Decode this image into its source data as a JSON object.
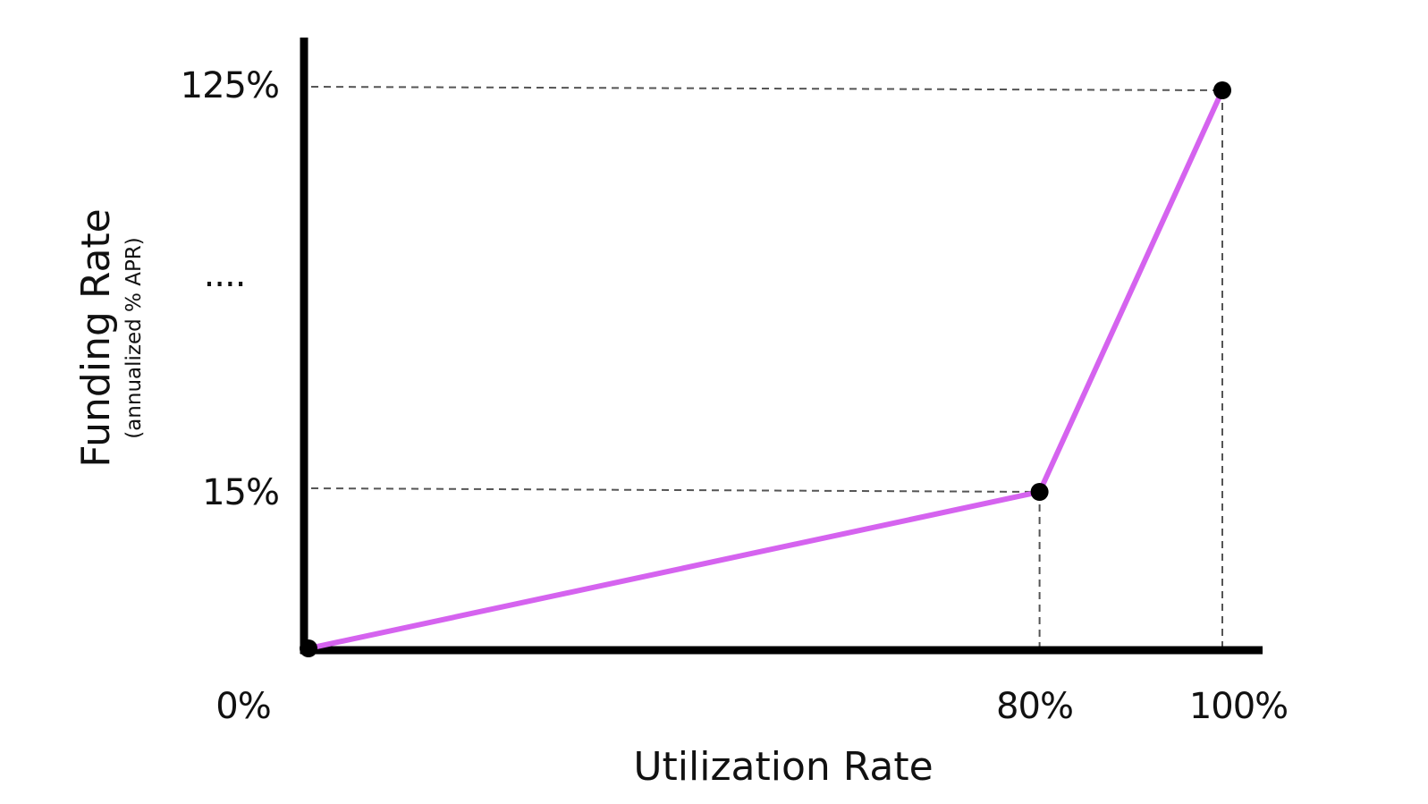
{
  "chart_data": {
    "type": "line",
    "xlabel": "Utilization Rate",
    "ylabel": "Funding Rate",
    "ylabel_sub": "(annualized % APR)",
    "x_tick_labels": [
      {
        "value": 0,
        "label": "0%"
      },
      {
        "value": 80,
        "label": "80%"
      },
      {
        "value": 100,
        "label": "100%"
      }
    ],
    "y_tick_labels": [
      {
        "value": 15,
        "label": "15%"
      },
      {
        "value": 125,
        "label": "125%"
      }
    ],
    "y_break_label": "....",
    "series": [
      {
        "color": "#d563ef",
        "points": [
          {
            "x": 0,
            "y": 0
          },
          {
            "x": 80,
            "y": 15
          },
          {
            "x": 100,
            "y": 125
          }
        ]
      }
    ],
    "reference_lines": [
      {
        "x": 80,
        "y": 15
      },
      {
        "x": 100,
        "y": 125
      }
    ],
    "scale_note": "y axis is broken between 15% and 125%",
    "colors": {
      "axis": "#000000",
      "line": "#d563ef",
      "marker": "#000000",
      "guide": "#555555"
    },
    "grid": false,
    "legend": "none"
  }
}
